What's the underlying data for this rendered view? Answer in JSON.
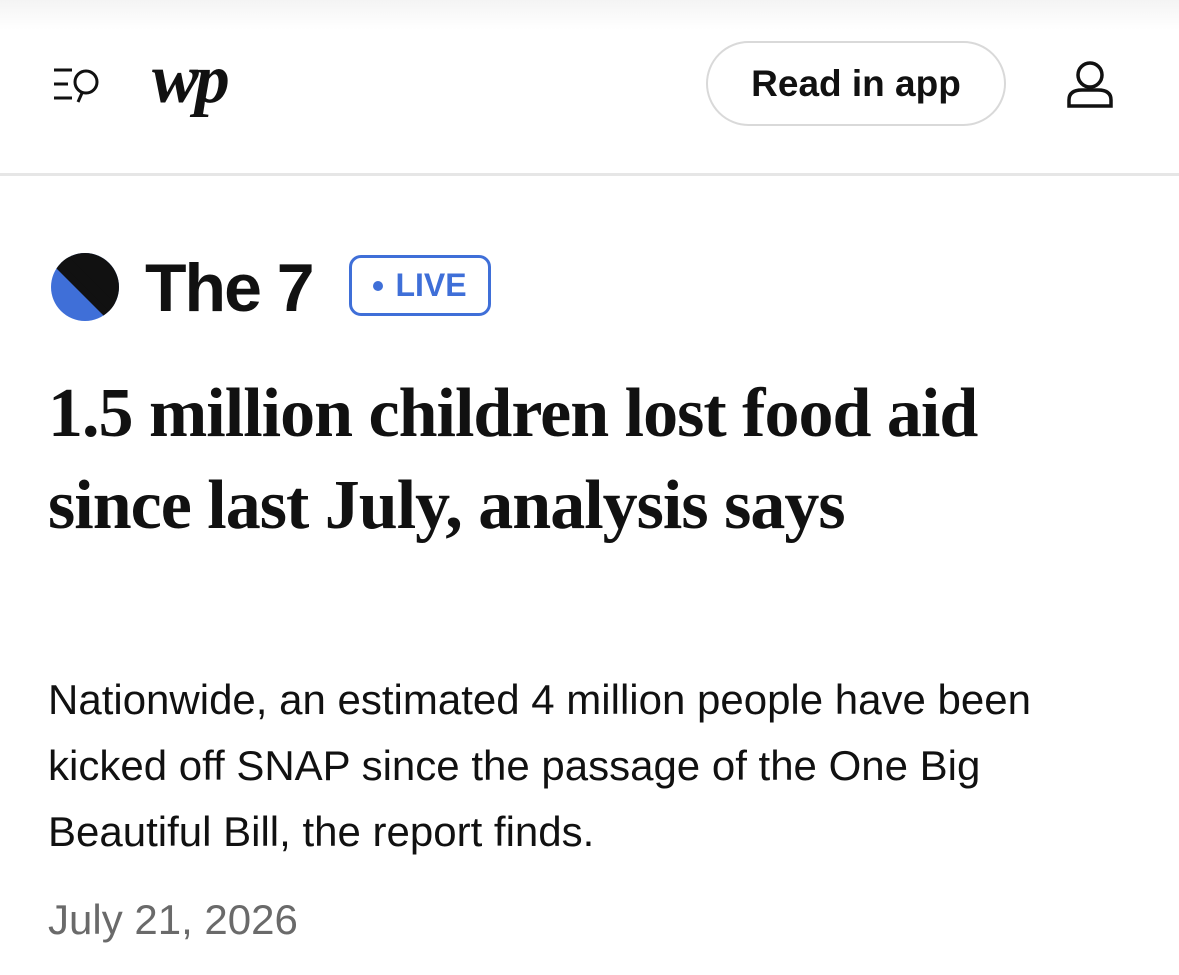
{
  "header": {
    "logo": "wp",
    "button": "Read in app"
  },
  "section": {
    "name": "The 7",
    "badge": "LIVE"
  },
  "article": {
    "headline": "1.5 million children lost food aid since last July, analysis says",
    "summary": "Nationwide, an estimated 4 million people have been kicked off SNAP since the passage of the One Big Beautiful Bill, the report finds.",
    "date": "July 21, 2026"
  }
}
